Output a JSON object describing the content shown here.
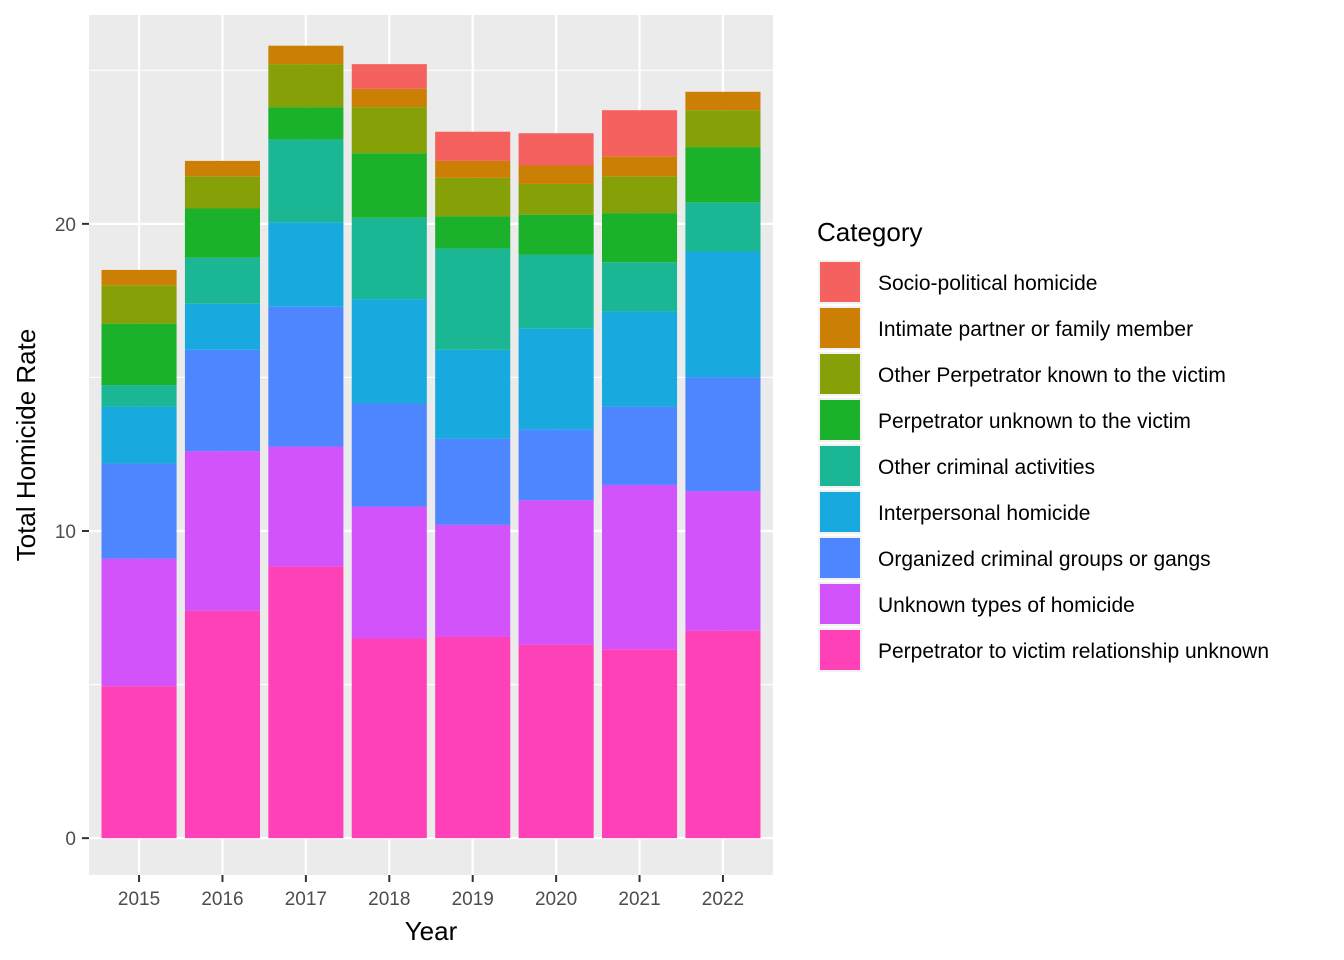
{
  "chart_data": {
    "type": "bar",
    "stacked": true,
    "title": "",
    "xlabel": "Year",
    "ylabel": "Total Homicide Rate",
    "categories": [
      "2015",
      "2016",
      "2017",
      "2018",
      "2019",
      "2020",
      "2021",
      "2022"
    ],
    "y_ticks": [
      "0",
      "10",
      "20"
    ],
    "ylim": [
      -1.2,
      26.8
    ],
    "grid": true,
    "legend": {
      "title": "Category",
      "placement": "right"
    },
    "series": [
      {
        "name": "Perpetrator to victim relationship unknown",
        "color": "#FF41B8",
        "values": [
          4.95,
          7.4,
          8.85,
          6.5,
          6.55,
          6.3,
          6.15,
          6.75
        ]
      },
      {
        "name": "Unknown types of homicide",
        "color": "#D153F9",
        "values": [
          4.15,
          5.2,
          3.9,
          4.3,
          3.65,
          4.7,
          5.35,
          4.55
        ]
      },
      {
        "name": "Organized criminal groups or gangs",
        "color": "#4E86FF",
        "values": [
          3.1,
          3.3,
          4.55,
          3.35,
          2.8,
          2.3,
          2.55,
          3.7
        ]
      },
      {
        "name": "Interpersonal homicide",
        "color": "#18A9DE",
        "values": [
          1.85,
          1.5,
          2.75,
          3.4,
          2.9,
          3.3,
          3.1,
          4.1
        ]
      },
      {
        "name": "Other criminal activities",
        "color": "#1BB693",
        "values": [
          0.7,
          1.5,
          2.7,
          2.65,
          3.3,
          2.4,
          1.6,
          1.6
        ]
      },
      {
        "name": "Perpetrator unknown to the victim",
        "color": "#1BB12B",
        "values": [
          2.0,
          1.6,
          1.05,
          2.1,
          1.05,
          1.3,
          1.6,
          1.8
        ]
      },
      {
        "name": "Other Perpetrator known to the victim",
        "color": "#86A008",
        "values": [
          1.25,
          1.05,
          1.4,
          1.5,
          1.25,
          1.0,
          1.2,
          1.2
        ]
      },
      {
        "name": "Intimate partner or family member",
        "color": "#CB7F04",
        "values": [
          0.5,
          0.5,
          0.6,
          0.6,
          0.55,
          0.6,
          0.65,
          0.6
        ]
      },
      {
        "name": "Socio-political homicide",
        "color": "#F4615E",
        "values": [
          0.0,
          0.0,
          0.0,
          0.8,
          0.95,
          1.05,
          1.5,
          0.0
        ]
      }
    ]
  }
}
